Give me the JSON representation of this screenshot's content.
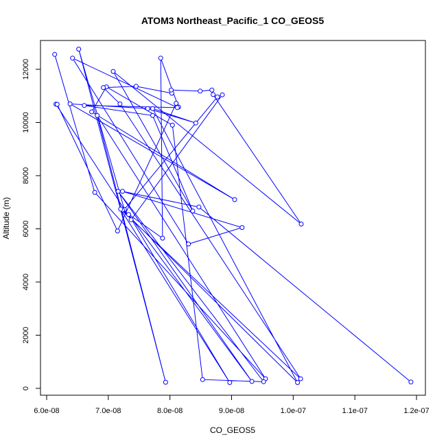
{
  "chart_data": {
    "type": "line",
    "title": "ATOM3 Northeast_Pacific_1 CO_GEOS5",
    "xlabel": "CO_GEOS5",
    "ylabel": "Altitude (m)",
    "xlim": [
      6e-08,
      1.2e-07
    ],
    "ylim": [
      0,
      13000
    ],
    "xticks": [
      6e-08,
      7e-08,
      8e-08,
      9e-08,
      1e-07,
      1.1e-07,
      1.2e-07
    ],
    "xtick_labels": [
      "6.0e-08",
      "7.0e-08",
      "8.0e-08",
      "9.0e-08",
      "1.0e-07",
      "1.1e-07",
      "1.2e-07"
    ],
    "yticks": [
      0,
      2000,
      4000,
      6000,
      8000,
      10000,
      12000
    ],
    "ytick_labels": [
      "0",
      "2000",
      "4000",
      "6000",
      "8000",
      "10000",
      "12000"
    ],
    "grid": false,
    "legend": "none",
    "color": "#0000ff",
    "marker": "open-circle",
    "series": [
      {
        "x": [
          6.13e-08,
          6.78e-08,
          9.55e-08,
          6.82e-08,
          7.93e-08,
          6.52e-08,
          7.26e-08,
          8.77e-08,
          8.85e-08,
          7.37e-08,
          6.15e-08,
          6.17e-08,
          7.15e-08,
          8.1e-08,
          8.14e-08,
          7.85e-08,
          7.88e-08,
          7.23e-08,
          1.007e-07,
          7.72e-08,
          8.42e-08,
          7.64e-08,
          6.38e-08,
          9.05e-08,
          6.73e-08,
          6.97e-08,
          8.04e-08,
          8.53e-08,
          9.52e-08,
          7.16e-08,
          9.33e-08,
          7.33e-08,
          8.97e-08,
          7.2e-08,
          1.012e-07,
          7.19e-08,
          6.92e-08,
          7.45e-08,
          8.03e-08,
          8.02e-08,
          8.49e-08,
          8.68e-08,
          8.7e-08,
          1.013e-07,
          7.08e-08,
          8.37e-08,
          7.72e-08,
          6.61e-08,
          8.12e-08,
          6.42e-08,
          8.3e-08,
          9.17e-08,
          7.23e-08,
          8.47e-08,
          1.191e-07
        ],
        "y": [
          12560,
          7370,
          360,
          10260,
          230,
          12760,
          6730,
          10960,
          11040,
          6340,
          10690,
          10680,
          5920,
          10720,
          10580,
          12420,
          5650,
          6710,
          220,
          10520,
          9980,
          10520,
          10700,
          7100,
          10400,
          11340,
          9900,
          330,
          250,
          7410,
          260,
          6540,
          220,
          6740,
          360,
          10700,
          11310,
          11360,
          11100,
          11220,
          11180,
          11220,
          11050,
          6180,
          11920,
          6670,
          10260,
          10640,
          10560,
          12420,
          5430,
          6050,
          7410,
          6820,
          240
        ]
      }
    ]
  }
}
